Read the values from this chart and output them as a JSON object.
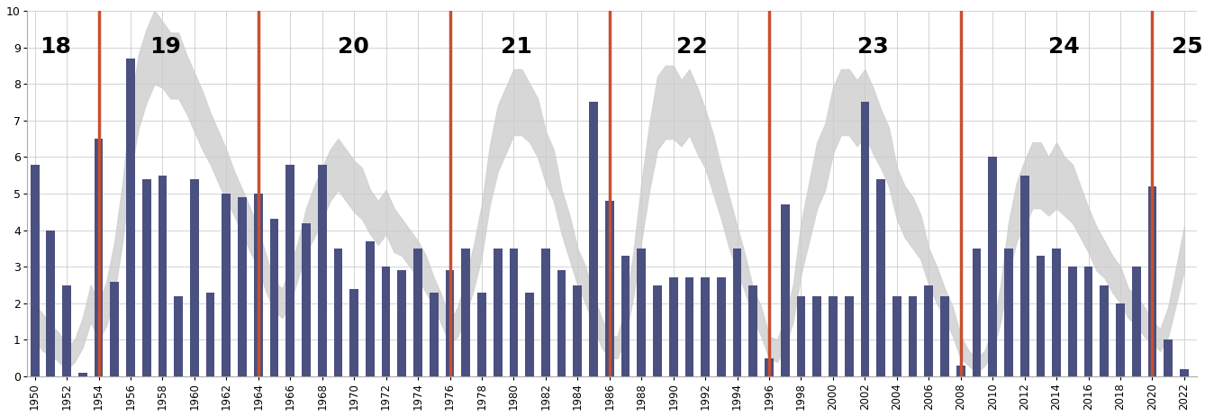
{
  "years": [
    1950,
    1951,
    1952,
    1953,
    1954,
    1955,
    1956,
    1957,
    1958,
    1959,
    1960,
    1961,
    1962,
    1963,
    1964,
    1965,
    1966,
    1967,
    1968,
    1969,
    1970,
    1971,
    1972,
    1973,
    1974,
    1975,
    1976,
    1977,
    1978,
    1979,
    1980,
    1981,
    1982,
    1983,
    1984,
    1985,
    1986,
    1987,
    1988,
    1989,
    1990,
    1991,
    1992,
    1993,
    1994,
    1995,
    1996,
    1997,
    1998,
    1999,
    2000,
    2001,
    2002,
    2003,
    2004,
    2005,
    2006,
    2007,
    2008,
    2009,
    2010,
    2011,
    2012,
    2013,
    2014,
    2015,
    2016,
    2017,
    2018,
    2019,
    2020,
    2021,
    2022
  ],
  "cold_wave_values": [
    5.8,
    4.0,
    2.5,
    0.1,
    6.5,
    2.6,
    8.7,
    5.4,
    5.5,
    2.2,
    5.4,
    2.3,
    5.0,
    4.9,
    5.0,
    4.3,
    5.8,
    4.2,
    5.8,
    3.5,
    2.4,
    3.7,
    3.0,
    2.9,
    3.5,
    2.3,
    2.9,
    3.5,
    2.3,
    3.5,
    3.5,
    2.3,
    3.5,
    2.9,
    2.5,
    7.5,
    4.8,
    3.3,
    3.5,
    2.5,
    2.7,
    2.7,
    2.7,
    2.7,
    3.5,
    2.5,
    0.5,
    4.7,
    2.2,
    2.2,
    2.2,
    2.2,
    7.5,
    5.4,
    2.2,
    2.2,
    2.5,
    2.2,
    0.3,
    3.5,
    6.0,
    3.5,
    5.5,
    3.3,
    3.5,
    3.0,
    3.0,
    2.5,
    2.0,
    3.0,
    5.2,
    1.0,
    0.2
  ],
  "red_line_years": [
    1954,
    1964,
    1976,
    1986,
    1996,
    2008,
    2020
  ],
  "bar_color": "#4a5080",
  "red_line_color": "#c94f30",
  "background_color": "#ffffff",
  "grid_color": "#cccccc",
  "ylim": [
    0,
    10
  ],
  "xlim": [
    1949.5,
    2022.8
  ],
  "yticks": [
    0,
    1,
    2,
    3,
    4,
    5,
    6,
    7,
    8,
    9,
    10
  ],
  "xtick_years": [
    1950,
    1952,
    1954,
    1956,
    1958,
    1960,
    1962,
    1964,
    1966,
    1968,
    1970,
    1972,
    1974,
    1976,
    1978,
    1980,
    1982,
    1984,
    1986,
    1988,
    1990,
    1992,
    1994,
    1996,
    1998,
    2000,
    2002,
    2004,
    2006,
    2008,
    2010,
    2012,
    2014,
    2016,
    2018,
    2020,
    2022
  ],
  "cycle_labels": [
    {
      "text": "18",
      "x": 1950.3
    },
    {
      "text": "19",
      "x": 1957.2
    },
    {
      "text": "20",
      "x": 1969.0
    },
    {
      "text": "21",
      "x": 1979.2
    },
    {
      "text": "22",
      "x": 1990.2
    },
    {
      "text": "23",
      "x": 2001.5
    },
    {
      "text": "24",
      "x": 2013.5
    },
    {
      "text": "25",
      "x": 2021.2
    }
  ],
  "sunspot_data": {
    "times": [
      1950.0,
      1950.5,
      1951.0,
      1951.5,
      1952.0,
      1952.5,
      1953.0,
      1953.5,
      1954.0,
      1954.5,
      1955.0,
      1955.5,
      1956.0,
      1956.5,
      1957.0,
      1957.5,
      1958.0,
      1958.5,
      1959.0,
      1959.5,
      1960.0,
      1960.5,
      1961.0,
      1961.5,
      1962.0,
      1962.5,
      1963.0,
      1963.5,
      1964.0,
      1964.5,
      1965.0,
      1965.5,
      1966.0,
      1966.5,
      1967.0,
      1967.5,
      1968.0,
      1968.5,
      1969.0,
      1969.5,
      1970.0,
      1970.5,
      1971.0,
      1971.5,
      1972.0,
      1972.5,
      1973.0,
      1973.5,
      1974.0,
      1974.5,
      1975.0,
      1975.5,
      1976.0,
      1976.5,
      1977.0,
      1977.5,
      1978.0,
      1978.5,
      1979.0,
      1979.5,
      1980.0,
      1980.5,
      1981.0,
      1981.5,
      1982.0,
      1982.5,
      1983.0,
      1983.5,
      1984.0,
      1984.5,
      1985.0,
      1985.5,
      1986.0,
      1986.5,
      1987.0,
      1987.5,
      1988.0,
      1988.5,
      1989.0,
      1989.5,
      1990.0,
      1990.5,
      1991.0,
      1991.5,
      1992.0,
      1992.5,
      1993.0,
      1993.5,
      1994.0,
      1994.5,
      1995.0,
      1995.5,
      1996.0,
      1996.5,
      1997.0,
      1997.5,
      1998.0,
      1998.5,
      1999.0,
      1999.5,
      2000.0,
      2000.5,
      2001.0,
      2001.5,
      2002.0,
      2002.5,
      2003.0,
      2003.5,
      2004.0,
      2004.5,
      2005.0,
      2005.5,
      2006.0,
      2006.5,
      2007.0,
      2007.5,
      2008.0,
      2008.5,
      2009.0,
      2009.5,
      2010.0,
      2010.5,
      2011.0,
      2011.5,
      2012.0,
      2012.5,
      2013.0,
      2013.5,
      2014.0,
      2014.5,
      2015.0,
      2015.5,
      2016.0,
      2016.5,
      2017.0,
      2017.5,
      2018.0,
      2018.5,
      2019.0,
      2019.5,
      2020.0,
      2020.5,
      2021.0,
      2021.5,
      2022.0
    ],
    "center": [
      1.5,
      1.2,
      1.0,
      0.8,
      0.5,
      0.7,
      1.2,
      2.0,
      1.5,
      2.0,
      3.0,
      4.5,
      6.5,
      7.8,
      8.5,
      9.0,
      8.8,
      8.5,
      8.5,
      8.0,
      7.5,
      7.0,
      6.5,
      6.0,
      5.5,
      5.0,
      4.5,
      4.0,
      3.5,
      2.8,
      2.2,
      2.0,
      2.5,
      3.2,
      4.0,
      4.5,
      5.0,
      5.5,
      5.8,
      5.5,
      5.2,
      5.0,
      4.5,
      4.2,
      4.5,
      4.0,
      3.8,
      3.5,
      3.2,
      2.8,
      2.3,
      1.8,
      1.2,
      1.5,
      2.2,
      3.0,
      4.0,
      5.5,
      6.5,
      7.0,
      7.5,
      7.5,
      7.2,
      6.8,
      6.0,
      5.5,
      4.5,
      3.8,
      3.0,
      2.5,
      1.8,
      1.2,
      0.8,
      0.8,
      1.5,
      2.8,
      4.5,
      6.0,
      7.2,
      7.5,
      7.5,
      7.2,
      7.5,
      7.0,
      6.5,
      5.8,
      5.0,
      4.2,
      3.5,
      2.8,
      2.0,
      1.5,
      0.8,
      0.7,
      1.2,
      2.0,
      3.5,
      4.5,
      5.5,
      6.0,
      7.0,
      7.5,
      7.5,
      7.2,
      7.5,
      7.0,
      6.5,
      6.0,
      5.0,
      4.5,
      4.2,
      3.8,
      3.0,
      2.5,
      2.0,
      1.5,
      0.8,
      0.5,
      0.3,
      0.5,
      1.0,
      2.0,
      3.5,
      4.5,
      5.0,
      5.5,
      5.5,
      5.2,
      5.5,
      5.2,
      5.0,
      4.5,
      4.0,
      3.5,
      3.2,
      2.8,
      2.5,
      2.0,
      1.8,
      1.5,
      1.2,
      1.0,
      1.5,
      2.5,
      3.5
    ],
    "spread": [
      0.5,
      0.5,
      0.4,
      0.4,
      0.3,
      0.3,
      0.4,
      0.5,
      0.5,
      0.6,
      0.7,
      0.8,
      0.9,
      1.0,
      1.0,
      1.0,
      0.9,
      0.9,
      0.9,
      0.8,
      0.8,
      0.8,
      0.7,
      0.7,
      0.7,
      0.6,
      0.6,
      0.6,
      0.5,
      0.5,
      0.4,
      0.4,
      0.5,
      0.5,
      0.6,
      0.7,
      0.7,
      0.7,
      0.7,
      0.7,
      0.7,
      0.7,
      0.6,
      0.6,
      0.6,
      0.6,
      0.5,
      0.5,
      0.5,
      0.5,
      0.4,
      0.4,
      0.3,
      0.4,
      0.5,
      0.6,
      0.7,
      0.8,
      0.9,
      0.9,
      0.9,
      0.9,
      0.8,
      0.8,
      0.7,
      0.7,
      0.6,
      0.6,
      0.5,
      0.5,
      0.4,
      0.4,
      0.3,
      0.3,
      0.4,
      0.6,
      0.8,
      0.9,
      1.0,
      1.0,
      1.0,
      0.9,
      0.9,
      0.9,
      0.8,
      0.8,
      0.7,
      0.7,
      0.6,
      0.5,
      0.4,
      0.4,
      0.3,
      0.3,
      0.4,
      0.5,
      0.7,
      0.8,
      0.9,
      0.9,
      0.9,
      0.9,
      0.9,
      0.9,
      0.9,
      0.9,
      0.8,
      0.8,
      0.7,
      0.7,
      0.7,
      0.6,
      0.5,
      0.5,
      0.4,
      0.4,
      0.3,
      0.2,
      0.2,
      0.2,
      0.3,
      0.5,
      0.7,
      0.8,
      0.9,
      0.9,
      0.9,
      0.8,
      0.9,
      0.8,
      0.8,
      0.7,
      0.6,
      0.6,
      0.5,
      0.5,
      0.5,
      0.4,
      0.4,
      0.4,
      0.3,
      0.3,
      0.4,
      0.5,
      0.6
    ]
  }
}
